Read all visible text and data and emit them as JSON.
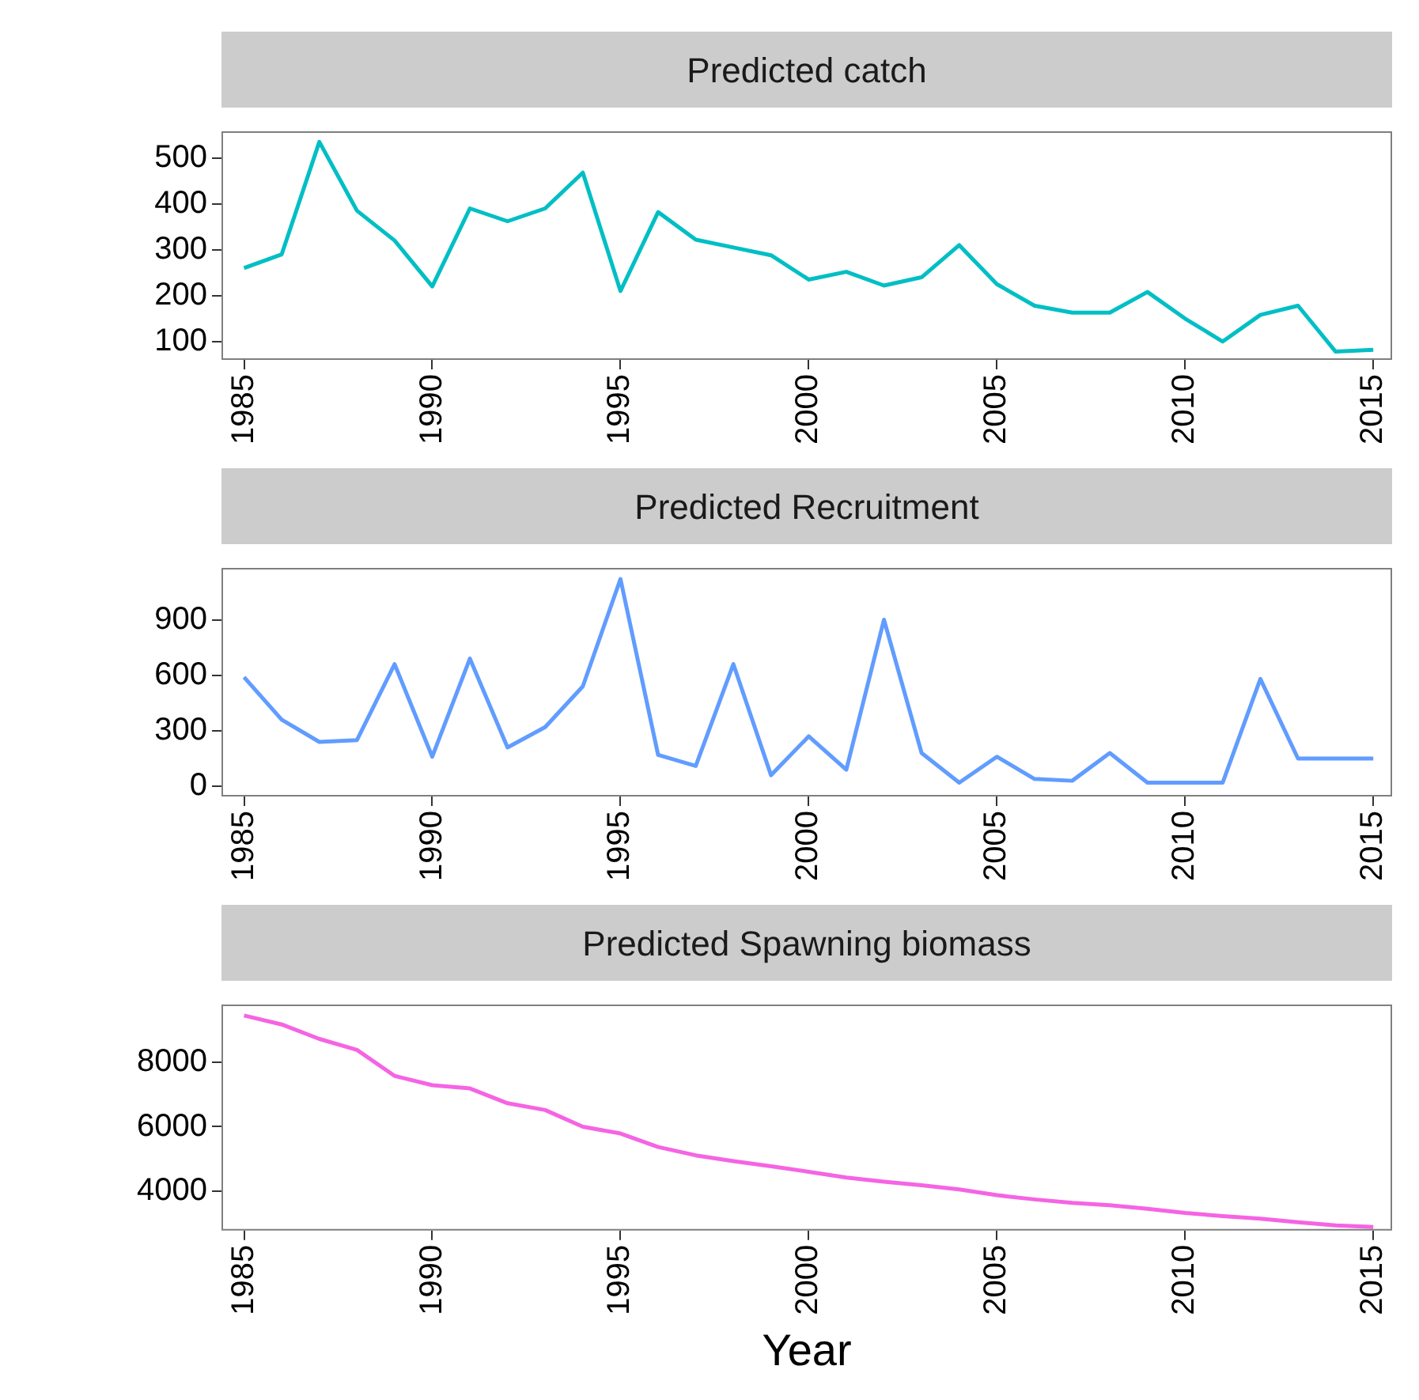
{
  "chart_data": [
    {
      "type": "line",
      "title": "Predicted catch",
      "x": [
        1985,
        1986,
        1987,
        1988,
        1989,
        1990,
        1991,
        1992,
        1993,
        1994,
        1995,
        1996,
        1997,
        1998,
        1999,
        2000,
        2001,
        2002,
        2003,
        2004,
        2005,
        2006,
        2007,
        2008,
        2009,
        2010,
        2011,
        2012,
        2013,
        2014,
        2015
      ],
      "values": [
        260,
        290,
        535,
        385,
        320,
        220,
        390,
        362,
        390,
        468,
        210,
        382,
        322,
        305,
        288,
        235,
        252,
        222,
        240,
        310,
        225,
        178,
        163,
        163,
        208,
        150,
        100,
        158,
        178,
        78,
        82
      ],
      "color": "#00bfc4",
      "xlim": [
        1984.4,
        2015.5
      ],
      "xticks": [
        1985,
        1990,
        1995,
        2000,
        2005,
        2010,
        2015
      ],
      "ylim": [
        60,
        558
      ],
      "yticks": [
        100,
        200,
        300,
        400,
        500
      ]
    },
    {
      "type": "line",
      "title": "Predicted Recruitment",
      "x": [
        1985,
        1986,
        1987,
        1988,
        1989,
        1990,
        1991,
        1992,
        1993,
        1994,
        1995,
        1996,
        1997,
        1998,
        1999,
        2000,
        2001,
        2002,
        2003,
        2004,
        2005,
        2006,
        2007,
        2008,
        2009,
        2010,
        2011,
        2012,
        2013,
        2014,
        2015
      ],
      "values": [
        590,
        360,
        240,
        250,
        660,
        160,
        690,
        210,
        320,
        540,
        1120,
        170,
        110,
        660,
        60,
        270,
        90,
        900,
        180,
        20,
        160,
        40,
        30,
        180,
        20,
        20,
        20,
        580,
        150,
        150,
        150
      ],
      "color": "#619cff",
      "xlim": [
        1984.4,
        2015.5
      ],
      "xticks": [
        1985,
        1990,
        1995,
        2000,
        2005,
        2010,
        2015
      ],
      "ylim": [
        -55,
        1180
      ],
      "yticks": [
        0,
        300,
        600,
        900
      ]
    },
    {
      "type": "line",
      "title": "Predicted Spawning biomass",
      "xlabel": "Year",
      "x": [
        1985,
        1986,
        1987,
        1988,
        1989,
        1990,
        1991,
        1992,
        1993,
        1994,
        1995,
        1996,
        1997,
        1998,
        1999,
        2000,
        2001,
        2002,
        2003,
        2004,
        2005,
        2006,
        2007,
        2008,
        2009,
        2010,
        2011,
        2012,
        2013,
        2014,
        2015
      ],
      "values": [
        9460,
        9180,
        8730,
        8390,
        7580,
        7290,
        7190,
        6730,
        6520,
        6000,
        5790,
        5370,
        5110,
        4930,
        4770,
        4600,
        4420,
        4290,
        4180,
        4050,
        3870,
        3740,
        3630,
        3560,
        3450,
        3320,
        3220,
        3140,
        3030,
        2930,
        2880
      ],
      "color": "#f564e3",
      "xlim": [
        1984.4,
        2015.5
      ],
      "xticks": [
        1985,
        1990,
        1995,
        2000,
        2005,
        2010,
        2015
      ],
      "ylim": [
        2770,
        9800
      ],
      "yticks": [
        4000,
        6000,
        8000
      ]
    }
  ]
}
